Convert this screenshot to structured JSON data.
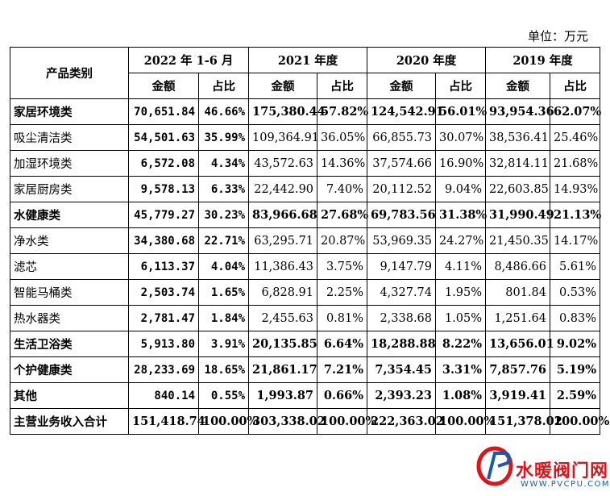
{
  "unit_label": "单位：万元",
  "header": {
    "category": "产品类别",
    "periods": [
      "2022 年 1-6 月",
      "2021 年度",
      "2020 年度",
      "2019 年度"
    ],
    "amount": "金额",
    "ratio": "占比"
  },
  "rows": [
    {
      "name": "家居环境类",
      "bold": true,
      "v": [
        "70,651.84",
        "46.66%",
        "175,380.44",
        "57.82%",
        "124,542.91",
        "56.01%",
        "93,954.36",
        "62.07%"
      ]
    },
    {
      "name": "吸尘清洁类",
      "bold": false,
      "v": [
        "54,501.63",
        "35.99%",
        "109,364.91",
        "36.05%",
        "66,855.73",
        "30.07%",
        "38,536.41",
        "25.46%"
      ]
    },
    {
      "name": "加湿环境类",
      "bold": false,
      "v": [
        "6,572.08",
        "4.34%",
        "43,572.63",
        "14.36%",
        "37,574.66",
        "16.90%",
        "32,814.11",
        "21.68%"
      ]
    },
    {
      "name": "家居厨房类",
      "bold": false,
      "v": [
        "9,578.13",
        "6.33%",
        "22,442.90",
        "7.40%",
        "20,112.52",
        "9.04%",
        "22,603.85",
        "14.93%"
      ]
    },
    {
      "name": "水健康类",
      "bold": true,
      "v": [
        "45,779.27",
        "30.23%",
        "83,966.68",
        "27.68%",
        "69,783.56",
        "31.38%",
        "31,990.49",
        "21.13%"
      ]
    },
    {
      "name": "净水类",
      "bold": false,
      "v": [
        "34,380.68",
        "22.71%",
        "63,295.71",
        "20.87%",
        "53,969.35",
        "24.27%",
        "21,450.35",
        "14.17%"
      ]
    },
    {
      "name": "滤芯",
      "bold": false,
      "v": [
        "6,113.37",
        "4.04%",
        "11,386.43",
        "3.75%",
        "9,147.79",
        "4.11%",
        "8,486.66",
        "5.61%"
      ]
    },
    {
      "name": "智能马桶类",
      "bold": false,
      "v": [
        "2,503.74",
        "1.65%",
        "6,828.91",
        "2.25%",
        "4,327.74",
        "1.95%",
        "801.84",
        "0.53%"
      ]
    },
    {
      "name": "热水器类",
      "bold": false,
      "v": [
        "2,781.47",
        "1.84%",
        "2,455.63",
        "0.81%",
        "2,338.68",
        "1.05%",
        "1,251.64",
        "0.83%"
      ]
    },
    {
      "name": "生活卫浴类",
      "bold": true,
      "v": [
        "5,913.80",
        "3.91%",
        "20,135.85",
        "6.64%",
        "18,288.88",
        "8.22%",
        "13,656.01",
        "9.02%"
      ]
    },
    {
      "name": "个护健康类",
      "bold": true,
      "v": [
        "28,233.69",
        "18.65%",
        "21,861.17",
        "7.21%",
        "7,354.45",
        "3.31%",
        "7,857.76",
        "5.19%"
      ]
    },
    {
      "name": "其他",
      "bold": true,
      "v": [
        "840.14",
        "0.55%",
        "1,993.87",
        "0.66%",
        "2,393.23",
        "1.08%",
        "3,919.41",
        "2.59%"
      ]
    },
    {
      "name": "主营业务收入合计",
      "bold": true,
      "v": [
        "151,418.74",
        "100.00%",
        "303,338.02",
        "100.00%",
        "222,363.02",
        "100.00%",
        "151,378.02",
        "100.00%"
      ]
    }
  ],
  "watermark": {
    "text": "水暖阀门网",
    "url": "WWW.PVCPU.COM",
    "red": "#d8161d",
    "blue": "#1a5aa8"
  }
}
